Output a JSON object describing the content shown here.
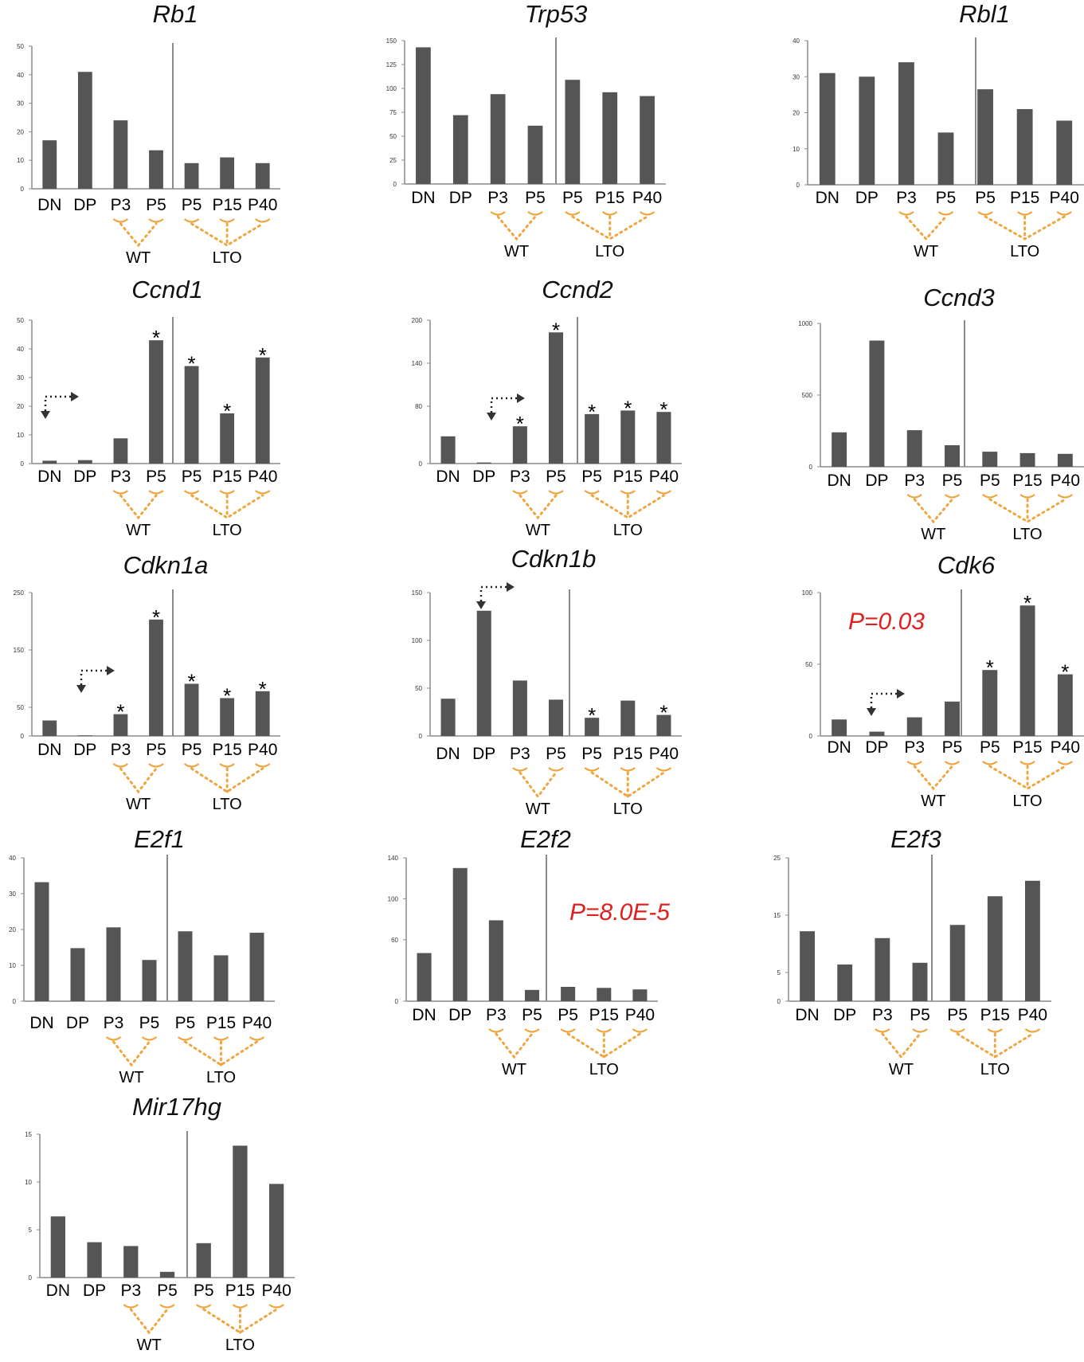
{
  "chart_data": [
    {
      "type": "bar",
      "title": "Rb1",
      "categories": [
        "DN",
        "DP",
        "P3",
        "P5",
        "P5",
        "P15",
        "P40"
      ],
      "values": [
        17,
        41,
        24,
        13.5,
        9,
        11,
        9
      ],
      "ylim": [
        0,
        50
      ],
      "yticks": [
        0,
        10,
        20,
        30,
        40,
        50
      ],
      "groups": [
        "WT",
        "LTO"
      ],
      "significant": [],
      "annotation": ""
    },
    {
      "type": "bar",
      "title": "Trp53",
      "categories": [
        "DN",
        "DP",
        "P3",
        "P5",
        "P5",
        "P15",
        "P40"
      ],
      "values": [
        143,
        72,
        94,
        61,
        109,
        96,
        92
      ],
      "ylim": [
        0,
        150
      ],
      "yticks": [
        0,
        25,
        50,
        75,
        100,
        125,
        150
      ],
      "groups": [
        "WT",
        "LTO"
      ],
      "significant": [],
      "annotation": ""
    },
    {
      "type": "bar",
      "title": "Rbl1",
      "categories": [
        "DN",
        "DP",
        "P3",
        "P5",
        "P5",
        "P15",
        "P40"
      ],
      "values": [
        31,
        30,
        34,
        14.5,
        26.5,
        21,
        17.8
      ],
      "ylim": [
        0,
        40
      ],
      "yticks": [
        0,
        10,
        20,
        30,
        40
      ],
      "groups": [
        "WT",
        "LTO"
      ],
      "significant": [],
      "annotation": ""
    },
    {
      "type": "bar",
      "title": "Ccnd1",
      "categories": [
        "DN",
        "DP",
        "P3",
        "P5",
        "P5",
        "P15",
        "P40"
      ],
      "values": [
        1,
        1.2,
        8.8,
        43,
        34,
        17.5,
        37
      ],
      "ylim": [
        0,
        50
      ],
      "yticks": [
        0,
        10,
        20,
        30,
        40,
        50
      ],
      "groups": [
        "WT",
        "LTO"
      ],
      "significant": [
        3,
        4,
        5,
        6
      ],
      "annotation": ""
    },
    {
      "type": "bar",
      "title": "Ccnd2",
      "categories": [
        "DN",
        "DP",
        "P3",
        "P5",
        "P5",
        "P15",
        "P40"
      ],
      "values": [
        38,
        1.5,
        52,
        183,
        69,
        74,
        72
      ],
      "ylim": [
        0,
        200
      ],
      "yticks": [
        0,
        80,
        140,
        200
      ],
      "groups": [
        "WT",
        "LTO"
      ],
      "significant": [
        2,
        3,
        4,
        5,
        6
      ],
      "annotation": ""
    },
    {
      "type": "bar",
      "title": "Ccnd3",
      "categories": [
        "DN",
        "DP",
        "P3",
        "P5",
        "P5",
        "P15",
        "P40"
      ],
      "values": [
        240,
        880,
        255,
        150,
        105,
        95,
        90
      ],
      "ylim": [
        0,
        1000
      ],
      "yticks": [
        0,
        500,
        1000
      ],
      "groups": [
        "WT",
        "LTO"
      ],
      "significant": [],
      "annotation": ""
    },
    {
      "type": "bar",
      "title": "Cdkn1a",
      "categories": [
        "DN",
        "DP",
        "P3",
        "P5",
        "P5",
        "P15",
        "P40"
      ],
      "values": [
        27,
        1,
        38,
        203,
        91,
        66,
        78
      ],
      "ylim": [
        0,
        250
      ],
      "yticks": [
        0,
        50,
        150,
        250
      ],
      "groups": [
        "WT",
        "LTO"
      ],
      "significant": [
        2,
        3,
        4,
        5,
        6
      ],
      "annotation": ""
    },
    {
      "type": "bar",
      "title": "Cdkn1b",
      "categories": [
        "DN",
        "DP",
        "P3",
        "P5",
        "P5",
        "P15",
        "P40"
      ],
      "values": [
        39,
        131,
        58,
        38,
        19,
        37,
        22
      ],
      "ylim": [
        0,
        150
      ],
      "yticks": [
        0,
        50,
        100,
        150
      ],
      "groups": [
        "WT",
        "LTO"
      ],
      "significant": [
        4,
        6
      ],
      "annotation": ""
    },
    {
      "type": "bar",
      "title": "Cdk6",
      "categories": [
        "DN",
        "DP",
        "P3",
        "P5",
        "P5",
        "P15",
        "P40"
      ],
      "values": [
        11.5,
        3,
        13,
        24,
        46,
        91,
        43
      ],
      "ylim": [
        0,
        100
      ],
      "yticks": [
        0,
        50,
        100
      ],
      "groups": [
        "WT",
        "LTO"
      ],
      "significant": [
        4,
        5,
        6
      ],
      "annotation": "P=0.03"
    },
    {
      "type": "bar",
      "title": "E2f1",
      "categories": [
        "DN",
        "DP",
        "P3",
        "P5",
        "P5",
        "P15",
        "P40"
      ],
      "values": [
        33.2,
        14.8,
        20.6,
        11.5,
        19.5,
        12.8,
        19.1
      ],
      "ylim": [
        0,
        40
      ],
      "yticks": [
        0,
        10,
        20,
        30,
        40
      ],
      "groups": [
        "WT",
        "LTO"
      ],
      "significant": [],
      "annotation": ""
    },
    {
      "type": "bar",
      "title": "E2f2",
      "categories": [
        "DN",
        "DP",
        "P3",
        "P5",
        "P5",
        "P15",
        "P40"
      ],
      "values": [
        47,
        130,
        79,
        11,
        14,
        13,
        11.5
      ],
      "ylim": [
        0,
        140
      ],
      "yticks": [
        0,
        60,
        100,
        140
      ],
      "groups": [
        "WT",
        "LTO"
      ],
      "significant": [],
      "annotation": "P=8.0E-5"
    },
    {
      "type": "bar",
      "title": "E2f3",
      "categories": [
        "DN",
        "DP",
        "P3",
        "P5",
        "P5",
        "P15",
        "P40"
      ],
      "values": [
        12.2,
        6.4,
        11,
        6.7,
        13.3,
        18.3,
        21
      ],
      "ylim": [
        0,
        25
      ],
      "yticks": [
        0,
        5,
        15,
        25
      ],
      "groups": [
        "WT",
        "LTO"
      ],
      "significant": [],
      "annotation": ""
    },
    {
      "type": "bar",
      "title": "Mir17hg",
      "categories": [
        "DN",
        "DP",
        "P3",
        "P5",
        "P5",
        "P15",
        "P40"
      ],
      "values": [
        6.4,
        3.7,
        3.3,
        0.6,
        3.6,
        13.8,
        9.8
      ],
      "ylim": [
        0,
        15
      ],
      "yticks": [
        0,
        5,
        10,
        15
      ],
      "groups": [
        "WT",
        "LTO"
      ],
      "significant": [],
      "annotation": ""
    }
  ],
  "significance_symbol": "*"
}
